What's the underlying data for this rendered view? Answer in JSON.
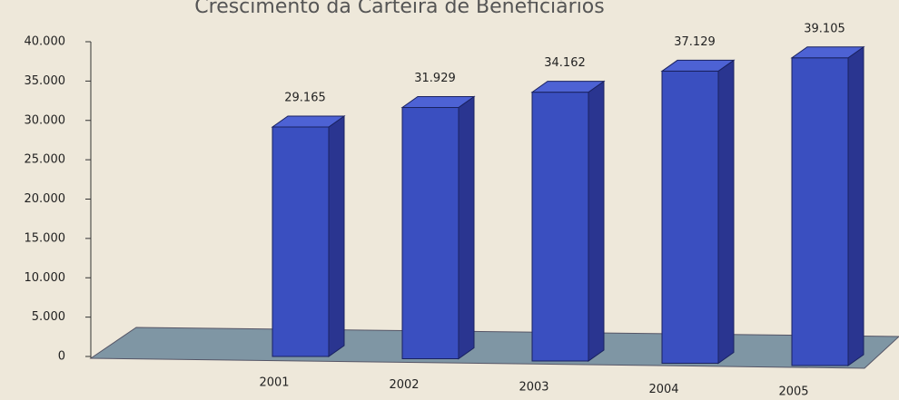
{
  "chart_data": {
    "type": "bar3d",
    "title": "Crescimento da Carteira de Beneficiários",
    "categories": [
      "2001",
      "2002",
      "2003",
      "2004",
      "2005"
    ],
    "values": [
      29165,
      31929,
      34162,
      37129,
      39105
    ],
    "value_labels": [
      "29.165",
      "31.929",
      "34.162",
      "37.129",
      "39.105"
    ],
    "color": "#3a4fc0",
    "ylim": [
      0,
      40000
    ],
    "yticks": [
      0,
      {
        "value": 5000,
        "label": "5.000"
      },
      {
        "value": 10000,
        "label": "10.000"
      },
      {
        "value": 15000,
        "label": "15.000"
      },
      {
        "value": 20000,
        "label": "20.000"
      },
      {
        "value": 25000,
        "label": "25.000"
      },
      {
        "value": 30000,
        "label": "30.000"
      },
      {
        "value": 35000,
        "label": "35.000"
      },
      {
        "value": 40000,
        "label": "40.000"
      }
    ]
  }
}
